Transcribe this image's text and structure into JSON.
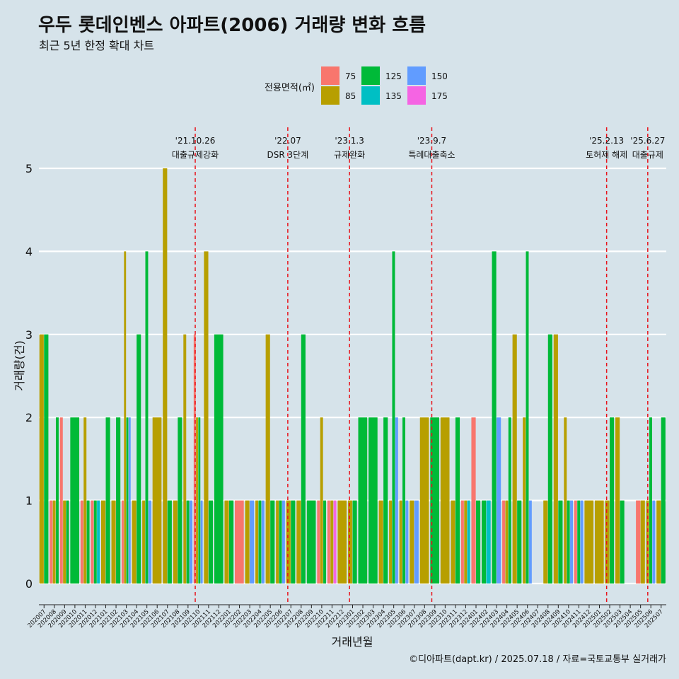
{
  "title": "우두 롯데인벤스 아파트(2006) 거래량 변화 흐름",
  "subtitle": "최근 5년 한정 확대 차트",
  "caption": "©디아파트(dapt.kr) / 2025.07.18 / 자료=국토교통부 실거래가",
  "colors": {
    "background": "#d6e3ea",
    "gridline": "#ffffff",
    "event_line": "#e8131b",
    "text": "#111111"
  },
  "chart_data": {
    "type": "bar",
    "xlabel": "거래년월",
    "ylabel": "거래량(건)",
    "ylim": [
      0,
      5
    ],
    "yticks": [
      0,
      1,
      2,
      3,
      4,
      5
    ],
    "grid": true,
    "legend": {
      "title": "전용면적(㎡)",
      "position": "top",
      "items": [
        {
          "label": "75",
          "color": "#f8766d"
        },
        {
          "label": "85",
          "color": "#b79f00"
        },
        {
          "label": "125",
          "color": "#00ba38"
        },
        {
          "label": "135",
          "color": "#00bfc4"
        },
        {
          "label": "150",
          "color": "#619cff"
        },
        {
          "label": "175",
          "color": "#f564e3"
        }
      ]
    },
    "categories": [
      "202007",
      "202008",
      "202009",
      "202010",
      "202011",
      "202012",
      "202101",
      "202102",
      "202103",
      "202104",
      "202105",
      "202106",
      "202107",
      "202108",
      "202109",
      "202110",
      "202111",
      "202112",
      "202201",
      "202202",
      "202203",
      "202204",
      "202205",
      "202206",
      "202207",
      "202208",
      "202209",
      "202210",
      "202211",
      "202212",
      "202301",
      "202302",
      "202303",
      "202304",
      "202305",
      "202306",
      "202307",
      "202308",
      "202309",
      "202310",
      "202311",
      "202312",
      "202401",
      "202402",
      "202403",
      "202404",
      "202405",
      "202406",
      "202407",
      "202408",
      "202409",
      "202410",
      "202411",
      "202412",
      "202501",
      "202502",
      "202503",
      "202504",
      "202505",
      "202506",
      "202507"
    ],
    "bars": [
      {
        "month": "202007",
        "series": [
          [
            "85",
            3
          ],
          [
            "125",
            3
          ]
        ]
      },
      {
        "month": "202008",
        "series": [
          [
            "75",
            1
          ],
          [
            "85",
            1
          ],
          [
            "125",
            2
          ]
        ]
      },
      {
        "month": "202009",
        "series": [
          [
            "75",
            2
          ],
          [
            "85",
            1
          ],
          [
            "125",
            1
          ]
        ]
      },
      {
        "month": "202010",
        "series": [
          [
            "125",
            2
          ]
        ]
      },
      {
        "month": "202011",
        "series": [
          [
            "75",
            1
          ],
          [
            "85",
            2
          ],
          [
            "125",
            1
          ]
        ]
      },
      {
        "month": "202012",
        "series": [
          [
            "75",
            1
          ],
          [
            "125",
            1
          ],
          [
            "135",
            1
          ]
        ]
      },
      {
        "month": "202101",
        "series": [
          [
            "85",
            1
          ],
          [
            "125",
            2
          ]
        ]
      },
      {
        "month": "202102",
        "series": [
          [
            "85",
            1
          ],
          [
            "125",
            2
          ]
        ]
      },
      {
        "month": "202103",
        "series": [
          [
            "75",
            1
          ],
          [
            "85",
            4
          ],
          [
            "125",
            2
          ],
          [
            "150",
            2
          ]
        ]
      },
      {
        "month": "202104",
        "series": [
          [
            "85",
            1
          ],
          [
            "125",
            3
          ]
        ]
      },
      {
        "month": "202105",
        "series": [
          [
            "85",
            1
          ],
          [
            "125",
            4
          ],
          [
            "150",
            1
          ]
        ]
      },
      {
        "month": "202106",
        "series": [
          [
            "85",
            2
          ]
        ]
      },
      {
        "month": "202107",
        "series": [
          [
            "85",
            5
          ],
          [
            "125",
            1
          ]
        ]
      },
      {
        "month": "202108",
        "series": [
          [
            "85",
            1
          ],
          [
            "125",
            2
          ]
        ]
      },
      {
        "month": "202109",
        "series": [
          [
            "85",
            3
          ],
          [
            "125",
            1
          ],
          [
            "150",
            1
          ]
        ]
      },
      {
        "month": "202110",
        "series": [
          [
            "75",
            3
          ],
          [
            "85",
            2
          ],
          [
            "125",
            2
          ],
          [
            "150",
            1
          ]
        ]
      },
      {
        "month": "202111",
        "series": [
          [
            "85",
            4
          ],
          [
            "125",
            1
          ]
        ]
      },
      {
        "month": "202112",
        "series": [
          [
            "125",
            3
          ]
        ]
      },
      {
        "month": "202201",
        "series": [
          [
            "85",
            1
          ],
          [
            "125",
            1
          ]
        ]
      },
      {
        "month": "202202",
        "series": [
          [
            "75",
            1
          ]
        ]
      },
      {
        "month": "202203",
        "series": [
          [
            "85",
            1
          ],
          [
            "150",
            1
          ]
        ]
      },
      {
        "month": "202204",
        "series": [
          [
            "85",
            1
          ],
          [
            "125",
            1
          ],
          [
            "150",
            1
          ]
        ]
      },
      {
        "month": "202205",
        "series": [
          [
            "85",
            3
          ],
          [
            "125",
            1
          ]
        ]
      },
      {
        "month": "202206",
        "series": [
          [
            "85",
            1
          ],
          [
            "125",
            1
          ],
          [
            "150",
            1
          ]
        ]
      },
      {
        "month": "202207",
        "series": [
          [
            "85",
            1
          ],
          [
            "125",
            1
          ]
        ]
      },
      {
        "month": "202208",
        "series": [
          [
            "85",
            1
          ],
          [
            "125",
            3
          ]
        ]
      },
      {
        "month": "202209",
        "series": [
          [
            "125",
            1
          ]
        ]
      },
      {
        "month": "202210",
        "series": [
          [
            "75",
            1
          ],
          [
            "85",
            2
          ],
          [
            "125",
            1
          ]
        ]
      },
      {
        "month": "202211",
        "series": [
          [
            "75",
            1
          ],
          [
            "85",
            1
          ],
          [
            "175",
            1
          ]
        ]
      },
      {
        "month": "202212",
        "series": [
          [
            "85",
            1
          ]
        ]
      },
      {
        "month": "202301",
        "series": [
          [
            "85",
            1
          ],
          [
            "125",
            1
          ]
        ]
      },
      {
        "month": "202302",
        "series": [
          [
            "125",
            2
          ]
        ]
      },
      {
        "month": "202303",
        "series": [
          [
            "125",
            2
          ]
        ]
      },
      {
        "month": "202304",
        "series": [
          [
            "85",
            1
          ],
          [
            "125",
            2
          ]
        ]
      },
      {
        "month": "202305",
        "series": [
          [
            "85",
            1
          ],
          [
            "125",
            4
          ],
          [
            "150",
            2
          ]
        ]
      },
      {
        "month": "202306",
        "series": [
          [
            "85",
            1
          ],
          [
            "125",
            2
          ],
          [
            "150",
            1
          ]
        ]
      },
      {
        "month": "202307",
        "series": [
          [
            "85",
            1
          ],
          [
            "150",
            1
          ]
        ]
      },
      {
        "month": "202308",
        "series": [
          [
            "85",
            2
          ]
        ]
      },
      {
        "month": "202309",
        "series": [
          [
            "125",
            2
          ]
        ]
      },
      {
        "month": "202310",
        "series": [
          [
            "85",
            2
          ]
        ]
      },
      {
        "month": "202311",
        "series": [
          [
            "85",
            1
          ],
          [
            "125",
            2
          ]
        ]
      },
      {
        "month": "202312",
        "series": [
          [
            "75",
            1
          ],
          [
            "85",
            1
          ],
          [
            "135",
            1
          ]
        ]
      },
      {
        "month": "202401",
        "series": [
          [
            "75",
            2
          ],
          [
            "125",
            1
          ]
        ]
      },
      {
        "month": "202402",
        "series": [
          [
            "125",
            1
          ],
          [
            "135",
            1
          ]
        ]
      },
      {
        "month": "202403",
        "series": [
          [
            "125",
            4
          ],
          [
            "150",
            2
          ]
        ]
      },
      {
        "month": "202404",
        "series": [
          [
            "75",
            1
          ],
          [
            "85",
            1
          ],
          [
            "125",
            2
          ]
        ]
      },
      {
        "month": "202405",
        "series": [
          [
            "85",
            3
          ],
          [
            "125",
            1
          ]
        ]
      },
      {
        "month": "202406",
        "series": [
          [
            "85",
            2
          ],
          [
            "125",
            4
          ],
          [
            "150",
            1
          ]
        ]
      },
      {
        "month": "202407",
        "series": []
      },
      {
        "month": "202408",
        "series": [
          [
            "85",
            1
          ],
          [
            "125",
            3
          ]
        ]
      },
      {
        "month": "202409",
        "series": [
          [
            "85",
            3
          ],
          [
            "125",
            1
          ]
        ]
      },
      {
        "month": "202410",
        "series": [
          [
            "85",
            2
          ],
          [
            "125",
            1
          ],
          [
            "150",
            1
          ]
        ]
      },
      {
        "month": "202411",
        "series": [
          [
            "75",
            1
          ],
          [
            "125",
            1
          ],
          [
            "150",
            1
          ]
        ]
      },
      {
        "month": "202412",
        "series": [
          [
            "85",
            1
          ]
        ]
      },
      {
        "month": "202501",
        "series": [
          [
            "85",
            1
          ]
        ]
      },
      {
        "month": "202502",
        "series": [
          [
            "85",
            1
          ],
          [
            "125",
            2
          ]
        ]
      },
      {
        "month": "202503",
        "series": [
          [
            "85",
            2
          ],
          [
            "125",
            1
          ]
        ]
      },
      {
        "month": "202504",
        "series": []
      },
      {
        "month": "202505",
        "series": [
          [
            "75",
            1
          ],
          [
            "85",
            1
          ]
        ]
      },
      {
        "month": "202506",
        "series": [
          [
            "85",
            1
          ],
          [
            "125",
            2
          ],
          [
            "150",
            1
          ]
        ]
      },
      {
        "month": "202507",
        "series": [
          [
            "85",
            1
          ],
          [
            "125",
            2
          ]
        ]
      }
    ],
    "events": [
      {
        "x": 15.2,
        "date": "'21.10.26",
        "label": "대출규제강화"
      },
      {
        "x": 24.2,
        "date": "'22.07",
        "label": "DSR 3단계"
      },
      {
        "x": 30.2,
        "date": "'23.1.3",
        "label": "규제완화"
      },
      {
        "x": 38.2,
        "date": "'23.9.7",
        "label": "특례대출축소"
      },
      {
        "x": 55.2,
        "date": "'25.2.13",
        "label": "토허제 해제"
      },
      {
        "x": 59.2,
        "date": "'25.6.27",
        "label": "대출규제"
      }
    ]
  }
}
